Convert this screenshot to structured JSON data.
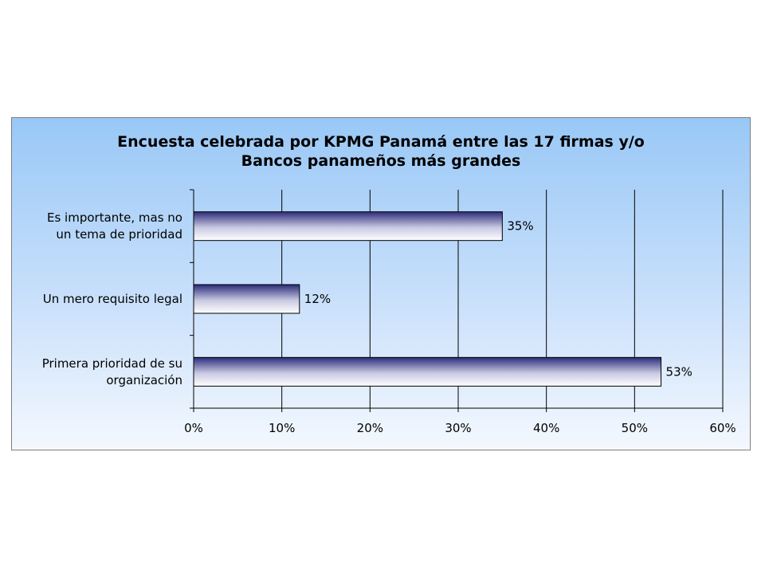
{
  "chart_data": {
    "type": "bar",
    "orientation": "horizontal",
    "title": "Encuesta celebrada por KPMG Panamá entre las 17 firmas y/o\nBancos panameños más grandes",
    "categories": [
      [
        "Es importante, mas no",
        "un tema de prioridad"
      ],
      [
        "Un mero requisito legal"
      ],
      [
        "Primera prioridad de su",
        "organización"
      ]
    ],
    "values": [
      35,
      12,
      53
    ],
    "data_labels": [
      "35%",
      "12%",
      "53%"
    ],
    "xlim": [
      0,
      60
    ],
    "xticks": [
      "0%",
      "10%",
      "20%",
      "30%",
      "40%",
      "50%",
      "60%"
    ],
    "grid": true,
    "legend": "none",
    "colors": {
      "bar_dark": "#2b2b7a",
      "bar_light": "#ffffff",
      "background_top": "#99c8f6",
      "background_bottom": "#f4f8fe"
    }
  }
}
